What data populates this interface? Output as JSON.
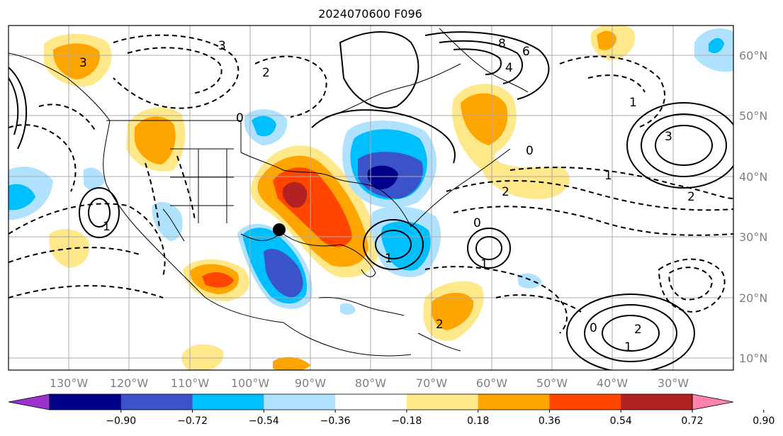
{
  "title": "2024070600 F096",
  "lat_labels": [
    "60°N",
    "50°N",
    "40°N",
    "30°N",
    "20°N",
    "10°N"
  ],
  "lon_labels": [
    "130°W",
    "120°W",
    "110°W",
    "100°W",
    "90°W",
    "80°W",
    "70°W",
    "60°W",
    "50°W",
    "40°W",
    "30°W"
  ],
  "colorbar": {
    "ticks": [
      "−0.90",
      "−0.72",
      "−0.54",
      "−0.36",
      "−0.18",
      "0.18",
      "0.36",
      "0.54",
      "0.72",
      "0.90"
    ],
    "colors": [
      "#9a32cd",
      "#00008b",
      "#3a53c9",
      "#00bfff",
      "#b0e2ff",
      "#ffffff",
      "#ffe88a",
      "#ffa500",
      "#ff4500",
      "#b22222",
      "#ff82ab"
    ]
  },
  "contour_labels": [
    "3",
    "4",
    "6",
    "8",
    "0",
    "2",
    "1",
    "3",
    "2",
    "1",
    "2",
    "0",
    "1",
    "2",
    "0",
    "1",
    "1",
    "1",
    "2",
    "0",
    "3"
  ]
}
